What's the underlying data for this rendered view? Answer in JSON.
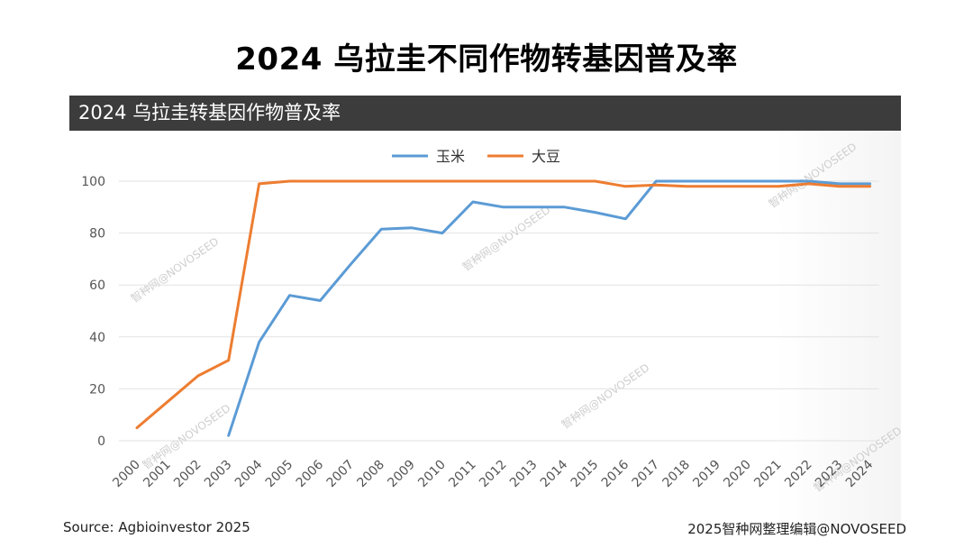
{
  "page": {
    "title": "2024 乌拉圭不同作物转基因普及率",
    "panel_title": "2024 乌拉圭转基因作物普及率",
    "source": "Source: Agbioinvestor 2025",
    "credit": "2025智种网整理编辑@NOVOSEED",
    "watermark": "智种网@NOVOSEED"
  },
  "chart_data": {
    "type": "line",
    "title": "2024 乌拉圭转基因作物普及率",
    "xlabel": "",
    "ylabel": "",
    "ylim": [
      0,
      100
    ],
    "yticks": [
      0,
      20,
      40,
      60,
      80,
      100
    ],
    "grid": true,
    "legend_position": "top",
    "categories": [
      "2000",
      "2001",
      "2002",
      "2003",
      "2004",
      "2005",
      "2006",
      "2007",
      "2008",
      "2009",
      "2010",
      "2011",
      "2012",
      "2013",
      "2014",
      "2015",
      "2016",
      "2017",
      "2018",
      "2019",
      "2020",
      "2021",
      "2022",
      "2023",
      "2024"
    ],
    "series": [
      {
        "name": "玉米",
        "color": "#5b9bd5",
        "values": [
          null,
          null,
          null,
          2,
          38,
          56,
          54,
          68,
          81.5,
          82,
          80,
          92,
          90,
          90,
          90,
          88,
          85.5,
          100,
          100,
          100,
          100,
          100,
          100,
          99,
          99
        ]
      },
      {
        "name": "大豆",
        "color": "#ed7d31",
        "values": [
          5,
          15,
          25,
          31,
          99,
          100,
          100,
          100,
          100,
          100,
          100,
          100,
          100,
          100,
          100,
          100,
          98,
          98.5,
          98,
          98,
          98,
          98,
          99,
          98,
          98
        ]
      }
    ]
  }
}
